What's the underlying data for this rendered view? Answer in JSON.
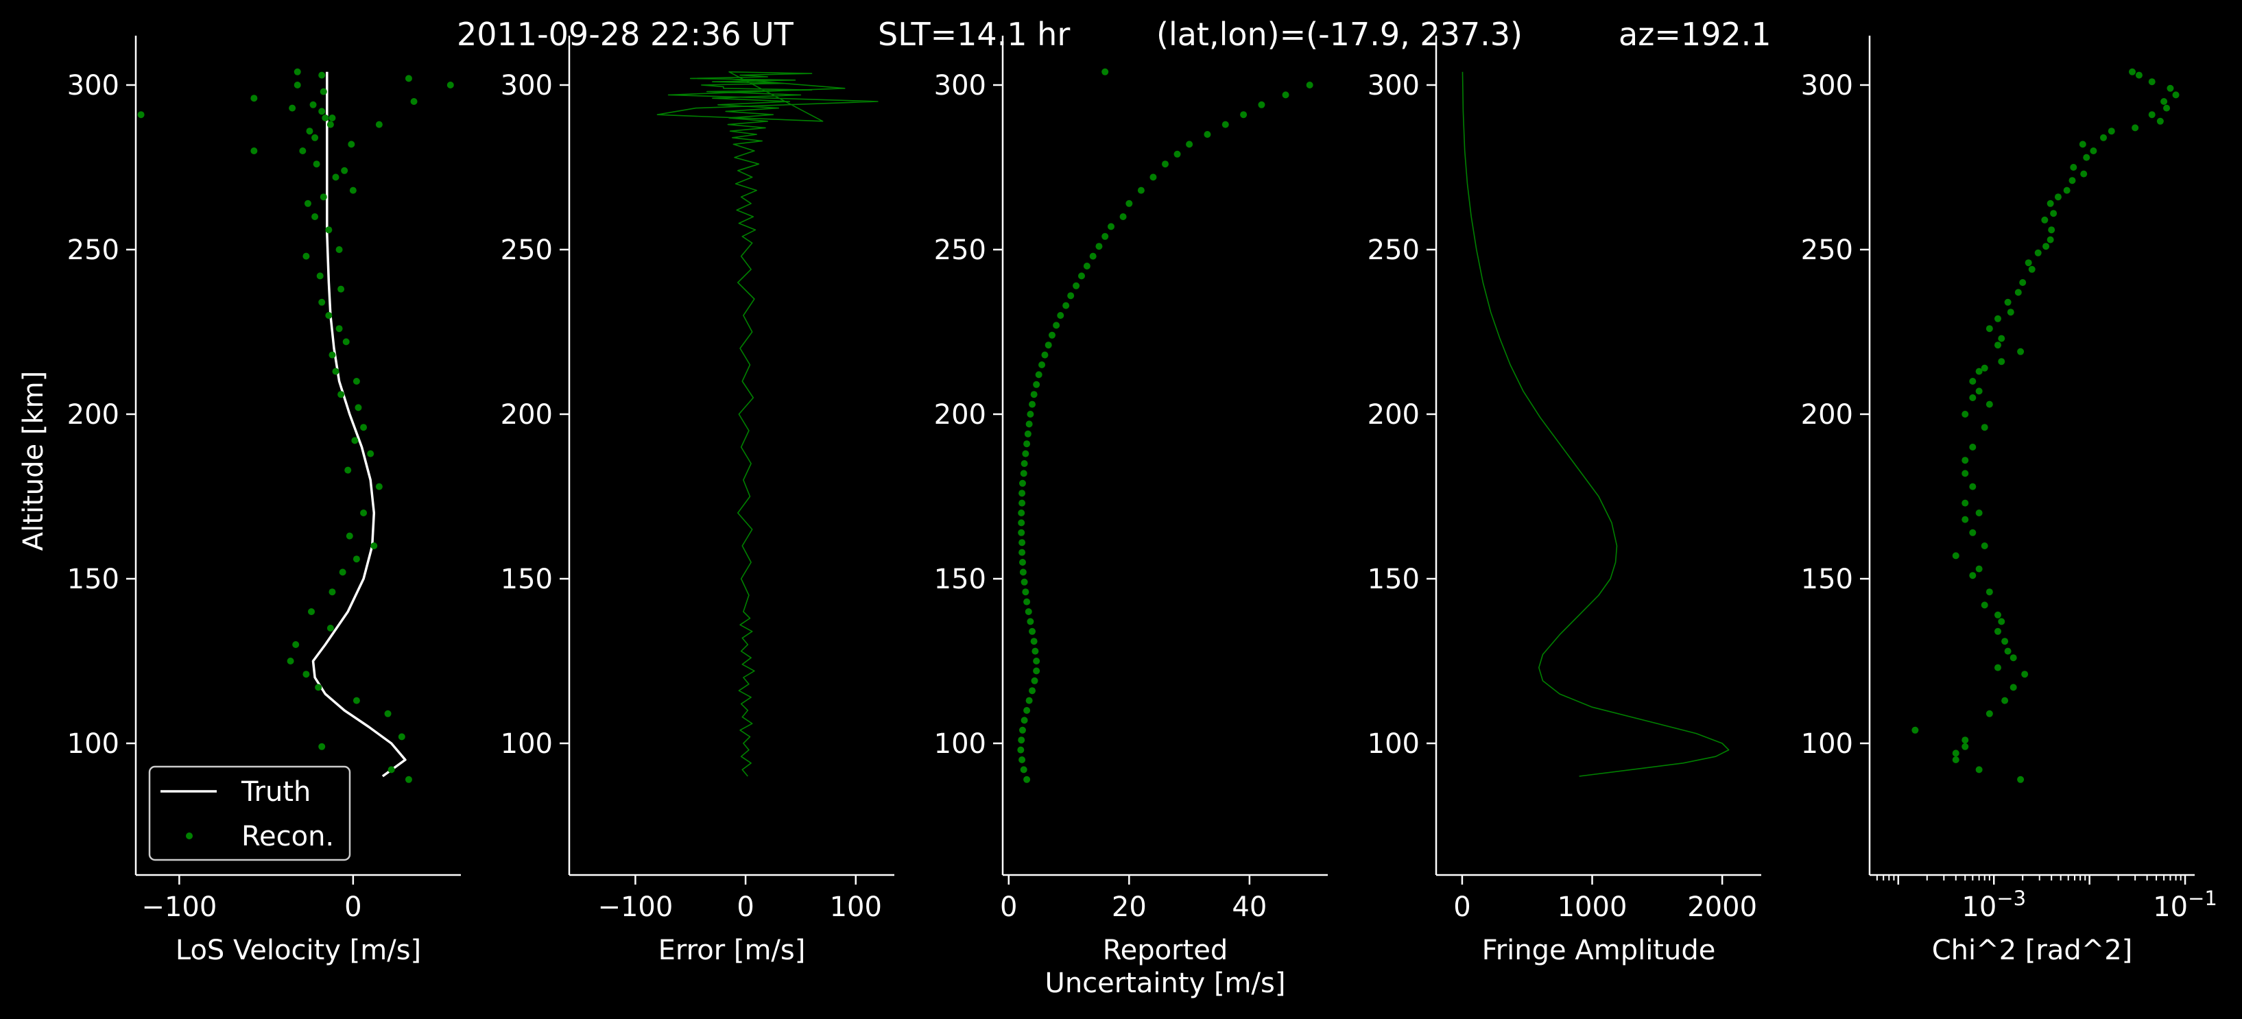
{
  "title": {
    "date": "2011-09-28 22:36 UT",
    "slt": "SLT=14.1 hr",
    "latlon": "(lat,lon)=(-17.9, 237.3)",
    "az": "az=192.1"
  },
  "colors": {
    "background": "#000000",
    "foreground": "#ffffff",
    "recon": "#008000",
    "truth": "#ffffff"
  },
  "legend": {
    "truth": "Truth",
    "recon": "Recon."
  },
  "chart_data": [
    {
      "type": "scatter",
      "xlabel": "LoS Velocity [m/s]",
      "ylabel": "Altitude [km]",
      "xlim": [
        -125,
        62
      ],
      "ylim": [
        60,
        315
      ],
      "xticks": [
        -100,
        0
      ],
      "yticks": [
        100,
        150,
        200,
        250,
        300
      ],
      "legend_position": "lower-left",
      "series": [
        {
          "name": "Truth",
          "kind": "line",
          "x": [
            17,
            30,
            22,
            9,
            -5,
            -16,
            -22,
            -23,
            -16,
            -3,
            6,
            11,
            12,
            10,
            5,
            -2,
            -8,
            -11,
            -13,
            -14,
            -15,
            -15,
            -15,
            -15
          ],
          "y": [
            90,
            95,
            100,
            105,
            110,
            115,
            120,
            125,
            130,
            140,
            150,
            160,
            170,
            180,
            190,
            200,
            210,
            220,
            230,
            240,
            255,
            270,
            285,
            304
          ]
        },
        {
          "name": "Recon.",
          "kind": "points",
          "x": [
            32,
            22,
            -18,
            28,
            20,
            2,
            -20,
            -27,
            -36,
            -33,
            -13,
            -24,
            -12,
            -6,
            2,
            12,
            -2,
            6,
            15,
            -3,
            10,
            1,
            6,
            3,
            -7,
            2,
            -10,
            -12,
            -4,
            -8,
            -14,
            -18,
            -7,
            -19,
            -27,
            -8,
            -14,
            -22,
            -26,
            -17,
            0,
            -10,
            -5,
            -21,
            -29,
            -1,
            -22,
            -25,
            -13,
            -16,
            -23,
            -17,
            -32,
            -18,
            -18,
            -12,
            -57,
            -35,
            15,
            -122,
            -57,
            32,
            35,
            -32,
            56
          ],
          "y": [
            89,
            92,
            99,
            102,
            109,
            113,
            117,
            121,
            125,
            130,
            135,
            140,
            146,
            152,
            156,
            160,
            163,
            170,
            178,
            183,
            188,
            192,
            196,
            202,
            206,
            210,
            213,
            218,
            222,
            226,
            230,
            234,
            238,
            242,
            248,
            250,
            256,
            260,
            264,
            266,
            268,
            272,
            274,
            276,
            280,
            282,
            284,
            286,
            288,
            290,
            294,
            298,
            300,
            303,
            292,
            290,
            280,
            293,
            288,
            291,
            296,
            302,
            295,
            304,
            300
          ]
        }
      ]
    },
    {
      "type": "line",
      "xlabel": "Error [m/s]",
      "xlim": [
        -160,
        135
      ],
      "ylim": [
        60,
        315
      ],
      "xticks": [
        -100,
        0,
        100
      ],
      "yticks": [
        100,
        150,
        200,
        250,
        300
      ],
      "series": [
        {
          "name": "",
          "x": [
            2,
            -3,
            5,
            -4,
            3,
            -2,
            4,
            -5,
            6,
            -3,
            2,
            -4,
            5,
            -6,
            3,
            -2,
            8,
            -3,
            5,
            -4,
            2,
            -3,
            6,
            -5,
            4,
            -2,
            3,
            -4,
            5,
            -3,
            6,
            -7,
            4,
            -2,
            5,
            -4,
            3,
            -6,
            7,
            -3,
            4,
            -5,
            6,
            -2,
            8,
            -7,
            5,
            -4,
            6,
            -3,
            9,
            -6,
            7,
            -8,
            5,
            -4,
            10,
            -9,
            6,
            -7,
            12,
            -10,
            8,
            -11,
            15,
            -12,
            10,
            -14,
            18,
            -16,
            20,
            -15,
            25,
            -18,
            30,
            -25,
            40,
            -30,
            50,
            -35,
            60,
            -20,
            -20,
            -40,
            35,
            -30,
            45,
            -50,
            20,
            -5,
            60,
            -15,
            70,
            -80,
            -45,
            120,
            -70,
            90,
            -20
          ],
          "y": [
            90,
            92,
            94,
            96,
            98,
            100,
            102,
            104,
            106,
            108,
            110,
            112,
            114,
            116,
            118,
            120,
            122,
            124,
            126,
            128,
            130,
            132,
            134,
            136,
            138,
            140,
            145,
            150,
            155,
            160,
            165,
            170,
            175,
            180,
            185,
            190,
            195,
            200,
            205,
            210,
            215,
            220,
            225,
            230,
            235,
            240,
            244,
            248,
            252,
            254,
            256,
            258,
            260,
            262,
            264,
            266,
            268,
            270,
            272,
            274,
            276,
            278,
            280,
            282,
            283,
            284,
            285,
            286,
            287,
            288,
            289,
            290,
            291,
            292,
            293,
            294,
            295,
            296,
            297,
            298,
            298.5,
            299,
            299.5,
            300,
            300.5,
            301,
            301.5,
            302,
            302.5,
            303,
            303.5,
            304,
            289,
            291,
            293,
            295,
            297,
            299,
            302
          ]
        }
      ]
    },
    {
      "type": "scatter",
      "xlabel": "Reported\nUncertainty [m/s]",
      "xlim": [
        -1,
        53
      ],
      "ylim": [
        60,
        315
      ],
      "xticks": [
        0,
        20,
        40
      ],
      "yticks": [
        100,
        150,
        200,
        250,
        300
      ],
      "series": [
        {
          "name": "",
          "x": [
            3,
            2.5,
            2.2,
            2,
            2.1,
            2.3,
            2.6,
            3,
            3.4,
            3.9,
            4.3,
            4.6,
            4.6,
            4.4,
            4.2,
            3.9,
            3.6,
            3.3,
            3,
            2.8,
            2.6,
            2.4,
            2.3,
            2.2,
            2.2,
            2.1,
            2.1,
            2.1,
            2.2,
            2.2,
            2.3,
            2.5,
            2.6,
            2.8,
            3,
            3.2,
            3.4,
            3.6,
            3.9,
            4.2,
            4.6,
            5,
            5.5,
            6,
            6.6,
            7.2,
            7.9,
            8.6,
            9.5,
            10.3,
            11.2,
            12.1,
            13,
            14,
            15,
            16,
            17,
            19,
            20,
            22,
            24,
            26,
            28,
            30,
            33,
            36,
            39,
            42,
            46,
            50,
            16
          ],
          "y": [
            89,
            92,
            95,
            98,
            101,
            104,
            107,
            110,
            113,
            116,
            119,
            122,
            125,
            128,
            131,
            134,
            137,
            140,
            143,
            146,
            149,
            152,
            155,
            158,
            161,
            164,
            167,
            170,
            173,
            176,
            179,
            182,
            185,
            188,
            191,
            194,
            197,
            200,
            203,
            206,
            209,
            212,
            215,
            218,
            221,
            224,
            227,
            230,
            233,
            236,
            239,
            242,
            245,
            248,
            251,
            254,
            257,
            260,
            264,
            268,
            272,
            276,
            279,
            282,
            285,
            288,
            291,
            294,
            297,
            300,
            304
          ]
        }
      ]
    },
    {
      "type": "line",
      "xlabel": "Fringe Amplitude",
      "xlim": [
        -200,
        2300
      ],
      "ylim": [
        60,
        315
      ],
      "xticks": [
        0,
        1000,
        2000
      ],
      "yticks": [
        100,
        150,
        200,
        250,
        300
      ],
      "series": [
        {
          "name": "",
          "x": [
            900,
            1300,
            1700,
            1950,
            2050,
            2000,
            1800,
            1400,
            1000,
            750,
            620,
            590,
            620,
            750,
            900,
            1050,
            1140,
            1180,
            1190,
            1150,
            1050,
            900,
            750,
            600,
            470,
            370,
            290,
            220,
            160,
            110,
            70,
            40,
            20,
            8,
            3
          ],
          "y": [
            90,
            92,
            94,
            96,
            98,
            100,
            103,
            107,
            111,
            115,
            119,
            123,
            127,
            133,
            139,
            145,
            150,
            155,
            160,
            167,
            175,
            183,
            191,
            199,
            207,
            215,
            223,
            231,
            240,
            250,
            260,
            270,
            280,
            292,
            304
          ]
        }
      ]
    },
    {
      "type": "scatter",
      "xlabel": "Chi^2 [rad^2]",
      "xscale": "log",
      "xlim_exp": [
        -4.3,
        -0.9
      ],
      "ylim": [
        60,
        315
      ],
      "xtick_labels": [
        "10^{-3}",
        "10^{-1}"
      ],
      "xtick_values": [
        0.001,
        0.1
      ],
      "yticks": [
        100,
        150,
        200,
        250,
        300
      ],
      "series": [
        {
          "name": "",
          "x": [
            0.0019,
            0.0007,
            0.0004,
            0.0004,
            0.0005,
            0.0005,
            0.00015,
            0.0009,
            0.0013,
            0.0016,
            0.0021,
            0.0011,
            0.0016,
            0.0014,
            0.0013,
            0.0011,
            0.0012,
            0.0011,
            0.0008,
            0.0009,
            0.0006,
            0.0007,
            0.0004,
            0.0008,
            0.0006,
            0.0005,
            0.0007,
            0.0005,
            0.0006,
            0.0005,
            0.0005,
            0.0006,
            0.0008,
            0.0005,
            0.0009,
            0.0006,
            0.0007,
            0.0006,
            0.0007,
            0.0008,
            0.0012,
            0.0019,
            0.0011,
            0.0012,
            0.0009,
            0.0011,
            0.0015,
            0.0014,
            0.0018,
            0.002,
            0.0025,
            0.0023,
            0.0029,
            0.0035,
            0.0039,
            0.004,
            0.0034,
            0.0042,
            0.0039,
            0.0047,
            0.0058,
            0.0066,
            0.0087,
            0.0068,
            0.0093,
            0.011,
            0.0085,
            0.014,
            0.017,
            0.03,
            0.055,
            0.045,
            0.064,
            0.06,
            0.08,
            0.07,
            0.045,
            0.033,
            0.028
          ],
          "y": [
            89,
            92,
            95,
            97,
            99,
            101,
            104,
            109,
            113,
            117,
            121,
            123,
            126,
            128,
            131,
            134,
            137,
            139,
            142,
            146,
            151,
            153,
            157,
            160,
            164,
            168,
            170,
            173,
            178,
            182,
            186,
            190,
            196,
            200,
            203,
            205,
            207,
            210,
            213,
            214,
            216,
            219,
            221,
            223,
            226,
            229,
            231,
            234,
            237,
            240,
            244,
            246,
            249,
            251,
            253,
            256,
            259,
            261,
            264,
            266,
            268,
            271,
            273,
            275,
            278,
            280,
            282,
            284,
            286,
            287,
            289,
            291,
            293,
            295,
            297,
            299,
            301,
            303,
            304
          ]
        }
      ]
    }
  ]
}
